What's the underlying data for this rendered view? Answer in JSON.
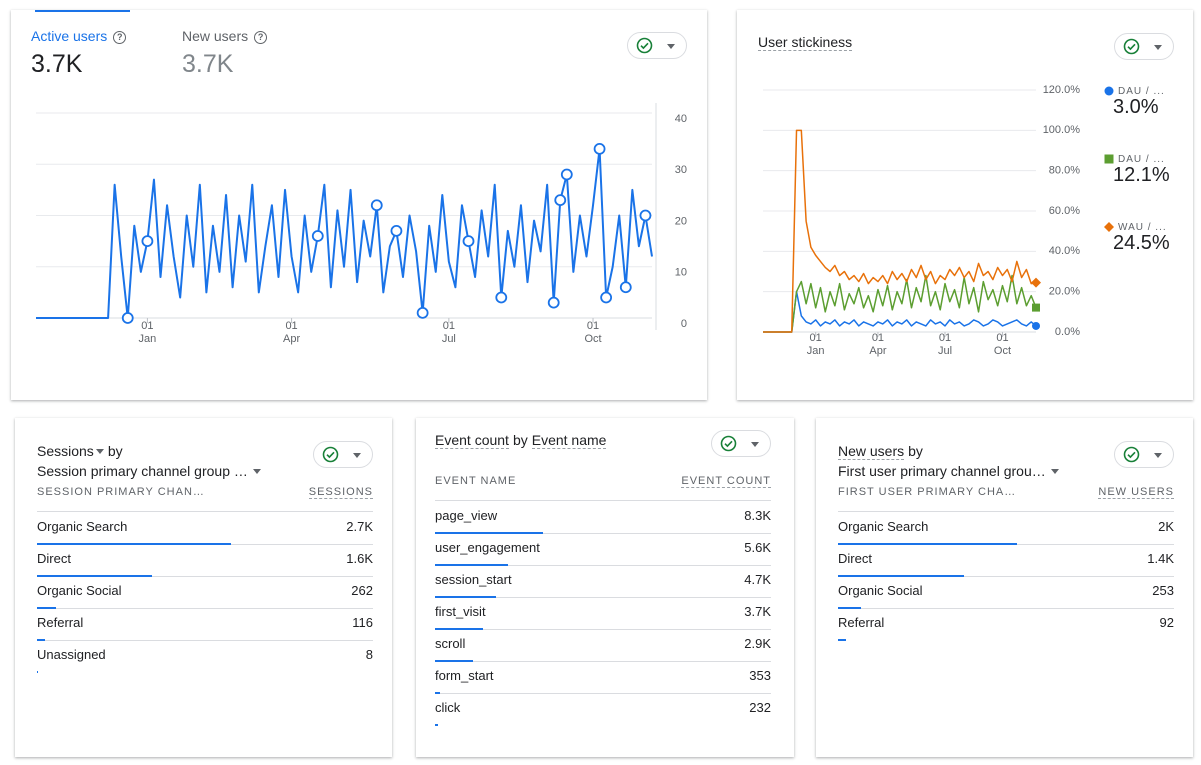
{
  "chart_data": [
    {
      "type": "line",
      "tabs": [
        {
          "label": "Active users",
          "value": "3.7K"
        },
        {
          "label": "New users",
          "value": "3.7K"
        }
      ],
      "categories": [
        null,
        null,
        null,
        null,
        null,
        null,
        null,
        null,
        null,
        null,
        null,
        null,
        null,
        null,
        null,
        null,
        null,
        "01\nJan",
        null,
        null,
        null,
        null,
        null,
        null,
        null,
        null,
        null,
        null,
        null,
        null,
        null,
        null,
        null,
        null,
        null,
        null,
        null,
        null,
        null,
        "01\nApr",
        null,
        null,
        null,
        null,
        null,
        null,
        null,
        null,
        null,
        null,
        null,
        null,
        null,
        null,
        null,
        null,
        null,
        null,
        null,
        null,
        null,
        null,
        null,
        "01\nJul",
        null,
        null,
        null,
        null,
        null,
        null,
        null,
        null,
        null,
        null,
        null,
        null,
        null,
        null,
        null,
        null,
        null,
        null,
        null,
        null,
        null,
        "01\nOct",
        null,
        null,
        null,
        null,
        null,
        null,
        null,
        null,
        null
      ],
      "series": [
        {
          "color": "#1a73e8",
          "values": [
            0,
            0,
            0,
            0,
            0,
            0,
            0,
            0,
            0,
            0,
            0,
            0,
            26,
            12,
            0,
            18,
            9,
            15,
            27,
            8,
            22,
            12,
            4,
            20,
            10,
            26,
            5,
            18,
            9,
            24,
            6,
            20,
            11,
            26,
            5,
            14,
            22,
            8,
            25,
            12,
            5,
            20,
            9,
            16,
            26,
            6,
            21,
            10,
            25,
            7,
            19,
            12,
            22,
            5,
            14,
            17,
            8,
            20,
            13,
            1,
            18,
            9,
            24,
            11,
            6,
            22,
            15,
            8,
            21,
            12,
            26,
            4,
            17,
            10,
            22,
            7,
            19,
            13,
            26,
            3,
            23,
            28,
            9,
            20,
            12,
            22,
            33,
            4,
            10,
            20,
            6,
            25,
            14,
            20,
            12
          ],
          "anomalies": [
            14,
            17,
            43,
            52,
            55,
            59,
            66,
            71,
            79,
            80,
            81,
            86,
            87,
            90,
            93
          ]
        }
      ],
      "ylim": [
        0,
        40
      ],
      "yticks": [
        0,
        10,
        20,
        30,
        40
      ],
      "grid": true
    },
    {
      "type": "line",
      "title": "User stickiness",
      "categories": [
        null,
        null,
        null,
        null,
        null,
        null,
        null,
        null,
        null,
        null,
        null,
        "01\nJan",
        null,
        null,
        null,
        null,
        null,
        null,
        null,
        null,
        null,
        null,
        null,
        null,
        "01\nApr",
        null,
        null,
        null,
        null,
        null,
        null,
        null,
        null,
        null,
        null,
        null,
        null,
        null,
        "01\nJul",
        null,
        null,
        null,
        null,
        null,
        null,
        null,
        null,
        null,
        null,
        null,
        "01\nOct",
        null,
        null,
        null,
        null,
        null,
        null,
        null
      ],
      "series": [
        {
          "name": "DAU / ...",
          "color": "#1a73e8",
          "marker": "circle",
          "summary": 3.0,
          "summary_label": "3.0%",
          "values": [
            0,
            0,
            0,
            0,
            0,
            0,
            0,
            20,
            8,
            5,
            4,
            6,
            3,
            5,
            4,
            6,
            3,
            5,
            4,
            6,
            3,
            5,
            4,
            3,
            5,
            4,
            6,
            3,
            5,
            4,
            6,
            3,
            5,
            4,
            3,
            6,
            4,
            5,
            3,
            6,
            4,
            5,
            3,
            4,
            6,
            5,
            3,
            4,
            6,
            5,
            3,
            4,
            5,
            6,
            4,
            3,
            5,
            3.0
          ]
        },
        {
          "name": "DAU / ...",
          "color": "#5c9e31",
          "marker": "square",
          "summary": 12.1,
          "summary_label": "12.1%",
          "values": [
            0,
            0,
            0,
            0,
            0,
            0,
            0,
            20,
            25,
            14,
            24,
            12,
            22,
            10,
            20,
            13,
            24,
            11,
            19,
            14,
            22,
            12,
            18,
            10,
            21,
            13,
            23,
            11,
            20,
            14,
            26,
            12,
            22,
            15,
            28,
            13,
            20,
            11,
            24,
            15,
            21,
            12,
            27,
            14,
            22,
            10,
            25,
            16,
            21,
            13,
            23,
            15,
            28,
            14,
            22,
            13,
            18,
            12.1
          ]
        },
        {
          "name": "WAU / ...",
          "color": "#e8710a",
          "marker": "diamond",
          "summary": 24.5,
          "summary_label": "24.5%",
          "values": [
            0,
            0,
            0,
            0,
            0,
            0,
            0,
            100,
            100,
            55,
            42,
            38,
            35,
            32,
            30,
            33,
            28,
            30,
            26,
            28,
            25,
            29,
            24,
            27,
            25,
            28,
            24,
            30,
            26,
            29,
            25,
            31,
            27,
            33,
            26,
            30,
            24,
            28,
            26,
            31,
            28,
            32,
            27,
            30,
            25,
            34,
            28,
            30,
            26,
            32,
            28,
            31,
            25,
            35,
            27,
            31,
            24,
            24.5
          ]
        }
      ],
      "ylim": [
        0,
        120
      ],
      "yticks": [
        {
          "value": 0,
          "label": "0.0%"
        },
        {
          "value": 20,
          "label": "20.0%"
        },
        {
          "value": 40,
          "label": "40.0%"
        },
        {
          "value": 60,
          "label": "60.0%"
        },
        {
          "value": 80,
          "label": "80.0%"
        },
        {
          "value": 100,
          "label": "100.0%"
        },
        {
          "value": 120,
          "label": "120.0%"
        }
      ],
      "grid": true
    }
  ],
  "tables": [
    {
      "metric": "Sessions",
      "by": "by",
      "dimension": "Session primary channel group …",
      "columns": [
        "SESSION PRIMARY CHAN…",
        "SESSIONS"
      ],
      "rows": [
        {
          "name": "Organic Search",
          "value": 2700,
          "label": "2.7K"
        },
        {
          "name": "Direct",
          "value": 1600,
          "label": "1.6K"
        },
        {
          "name": "Organic Social",
          "value": 262,
          "label": "262"
        },
        {
          "name": "Referral",
          "value": 116,
          "label": "116"
        },
        {
          "name": "Unassigned",
          "value": 8,
          "label": "8"
        }
      ]
    },
    {
      "metric": "Event count",
      "by": "by",
      "dimension": "Event name",
      "columns": [
        "EVENT NAME",
        "EVENT COUNT"
      ],
      "rows": [
        {
          "name": "page_view",
          "value": 8300,
          "label": "8.3K"
        },
        {
          "name": "user_engagement",
          "value": 5600,
          "label": "5.6K"
        },
        {
          "name": "session_start",
          "value": 4700,
          "label": "4.7K"
        },
        {
          "name": "first_visit",
          "value": 3700,
          "label": "3.7K"
        },
        {
          "name": "scroll",
          "value": 2900,
          "label": "2.9K"
        },
        {
          "name": "form_start",
          "value": 353,
          "label": "353"
        },
        {
          "name": "click",
          "value": 232,
          "label": "232"
        }
      ]
    },
    {
      "metric": "New users",
      "by": "by",
      "dimension": "First user primary channel grou…",
      "columns": [
        "FIRST USER PRIMARY CHA…",
        "NEW USERS"
      ],
      "rows": [
        {
          "name": "Organic Search",
          "value": 2000,
          "label": "2K"
        },
        {
          "name": "Direct",
          "value": 1400,
          "label": "1.4K"
        },
        {
          "name": "Organic Social",
          "value": 253,
          "label": "253"
        },
        {
          "name": "Referral",
          "value": 92,
          "label": "92"
        }
      ]
    }
  ]
}
